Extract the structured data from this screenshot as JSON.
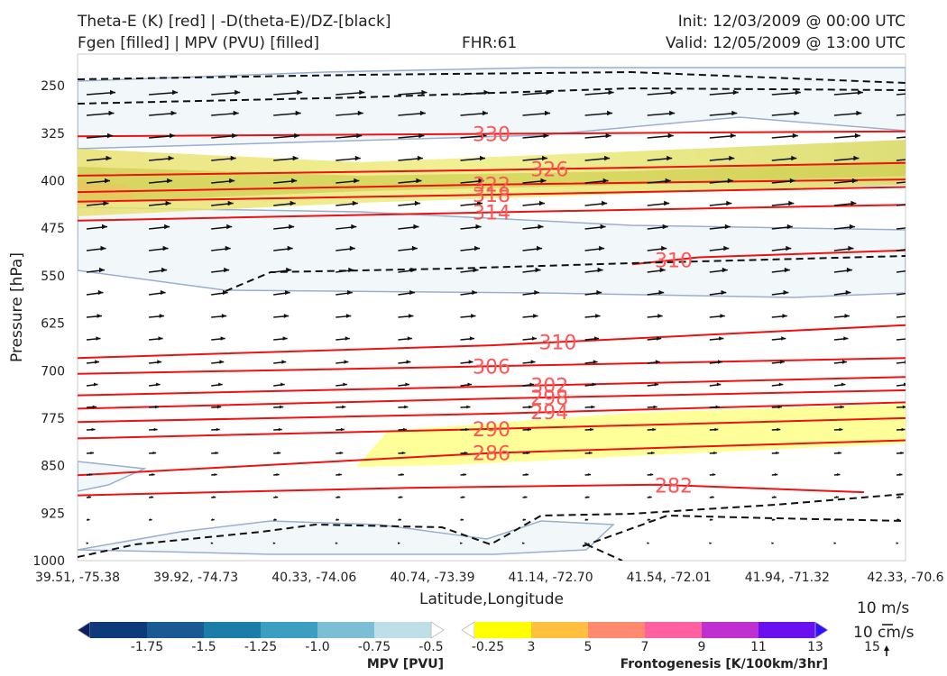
{
  "header": {
    "title_left_1": "Theta-E (K) [red] | -D(theta-E)/DZ-[black]",
    "title_left_2": "Fgen [filled] | MPV (PVU) [filled]",
    "fhr": "FHR:61",
    "init": "Init: 12/03/2009 @ 00:00 UTC",
    "valid": "Valid: 12/05/2009 @ 13:00 UTC"
  },
  "chart_data": {
    "type": "cross-section",
    "xlabel": "Latitude,Longitude",
    "ylabel": "Pressure [hPa]",
    "x_ticks": [
      "39.51, -75.38",
      "39.92, -74.73",
      "40.33, -74.06",
      "40.74, -73.39",
      "41.14, -72.70",
      "41.54, -72.01",
      "41.94, -71.32",
      "42.33, -70.6"
    ],
    "y_ticks": [
      250,
      325,
      400,
      475,
      550,
      625,
      700,
      775,
      850,
      925,
      1000
    ],
    "ylim": [
      1000,
      200
    ],
    "theta_e_contours": [
      {
        "label": "330",
        "level": 330,
        "pts": [
          [
            0,
            330
          ],
          [
            0.5,
            326
          ],
          [
            1.0,
            322
          ]
        ]
      },
      {
        "label": "326",
        "level": 326,
        "pts": [
          [
            0,
            392
          ],
          [
            0.5,
            383
          ],
          [
            1.0,
            372
          ]
        ]
      },
      {
        "label": "322",
        "level": 322,
        "pts": [
          [
            0,
            418
          ],
          [
            0.5,
            406
          ],
          [
            1.0,
            398
          ]
        ]
      },
      {
        "label": "318",
        "level": 318,
        "pts": [
          [
            0,
            433
          ],
          [
            0.5,
            422
          ],
          [
            1.0,
            410
          ]
        ]
      },
      {
        "label": "314",
        "level": 314,
        "pts": [
          [
            0,
            463
          ],
          [
            0.5,
            450
          ],
          [
            1.0,
            438
          ]
        ]
      },
      {
        "label": "310",
        "level": 310,
        "pts": [
          [
            0.67,
            532
          ],
          [
            0.75,
            521
          ],
          [
            1.0,
            510
          ]
        ]
      },
      {
        "label": "310",
        "level": 310,
        "pts": [
          [
            0,
            680
          ],
          [
            0.5,
            660
          ],
          [
            1.0,
            628
          ]
        ]
      },
      {
        "label": "306",
        "level": 306,
        "pts": [
          [
            0,
            705
          ],
          [
            0.5,
            693
          ],
          [
            1.0,
            680
          ]
        ]
      },
      {
        "label": "302",
        "level": 302,
        "pts": [
          [
            0,
            739
          ],
          [
            0.5,
            725
          ],
          [
            1.0,
            710
          ]
        ]
      },
      {
        "label": "298",
        "level": 298,
        "pts": [
          [
            0,
            760
          ],
          [
            0.5,
            744
          ],
          [
            1.0,
            731
          ]
        ]
      },
      {
        "label": "294",
        "level": 294,
        "pts": [
          [
            0,
            781
          ],
          [
            0.5,
            768
          ],
          [
            1.0,
            750
          ]
        ]
      },
      {
        "label": "290",
        "level": 290,
        "pts": [
          [
            0,
            807
          ],
          [
            0.5,
            792
          ],
          [
            1.0,
            775
          ]
        ]
      },
      {
        "label": "286",
        "level": 286,
        "pts": [
          [
            0,
            865
          ],
          [
            0.5,
            830
          ],
          [
            1.0,
            810
          ]
        ]
      },
      {
        "label": "282",
        "level": 282,
        "pts": [
          [
            0,
            897
          ],
          [
            0.4,
            885
          ],
          [
            0.7,
            880
          ],
          [
            0.95,
            892
          ]
        ]
      }
    ],
    "mpv_colorbar": {
      "title": "MPV [PVU]",
      "levels": [
        "-1.75",
        "-1.5",
        "-1.25",
        "-1.0",
        "-0.75",
        "-0.5",
        "-0.25"
      ],
      "colors": [
        "#0b1f5e",
        "#0f3a7a",
        "#1a5a92",
        "#1c7ea8",
        "#3a9fc0",
        "#7cbfd4",
        "#bfdfe8",
        "#ffffff"
      ]
    },
    "fgen_colorbar": {
      "title": "Frontogenesis [K/100km/3hr]",
      "levels": [
        "3",
        "5",
        "7",
        "9",
        "11",
        "13",
        "15"
      ],
      "colors": [
        "#ffffff",
        "#ffff00",
        "#ffc040",
        "#ff8a70",
        "#ff60a0",
        "#c030d0",
        "#6a10f0",
        "#3010ff"
      ]
    },
    "reference_vectors": [
      "10 m/s",
      "10 cm/s"
    ]
  }
}
